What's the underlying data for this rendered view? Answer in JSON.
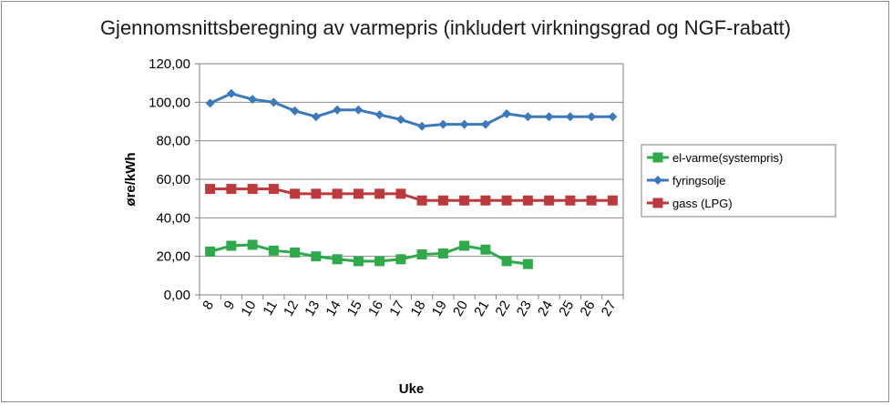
{
  "chart_data": {
    "type": "line",
    "title": "Gjennomsnittsberegning av varmepris (inkludert virkningsgrad og NGF-rabatt)",
    "xlabel": "Uke",
    "ylabel": "øre/kWh",
    "categories": [
      "8",
      "9",
      "10",
      "11",
      "12",
      "13",
      "14",
      "15",
      "16",
      "17",
      "18",
      "19",
      "20",
      "21",
      "22",
      "23",
      "24",
      "25",
      "26",
      "27"
    ],
    "ylim": [
      0,
      120
    ],
    "yticks": [
      "0,00",
      "20,00",
      "40,00",
      "60,00",
      "80,00",
      "100,00",
      "120,00"
    ],
    "grid": true,
    "legend_position": "right",
    "series": [
      {
        "name": "el-varme(systempris)",
        "color": "#2eaa4a",
        "marker": "square",
        "values": [
          22.5,
          25.5,
          26,
          23,
          22,
          20,
          18.5,
          17.5,
          17.5,
          18.5,
          21,
          21.5,
          25.5,
          23.5,
          17.5,
          16,
          null,
          null,
          null,
          null
        ]
      },
      {
        "name": "fyringsolje",
        "color": "#3b78bd",
        "marker": "diamond",
        "values": [
          99.5,
          104.5,
          101.5,
          100,
          95.5,
          92.5,
          96,
          96,
          93.5,
          91,
          87.5,
          88.5,
          88.5,
          88.5,
          94,
          92.5,
          92.5,
          92.5,
          92.5,
          92.5
        ]
      },
      {
        "name": "gass (LPG)",
        "color": "#bd3a3c",
        "marker": "square",
        "values": [
          55,
          55,
          55,
          55,
          52.5,
          52.5,
          52.5,
          52.5,
          52.5,
          52.5,
          49,
          49,
          49,
          49,
          49,
          49,
          49,
          49,
          49,
          49
        ]
      }
    ]
  }
}
